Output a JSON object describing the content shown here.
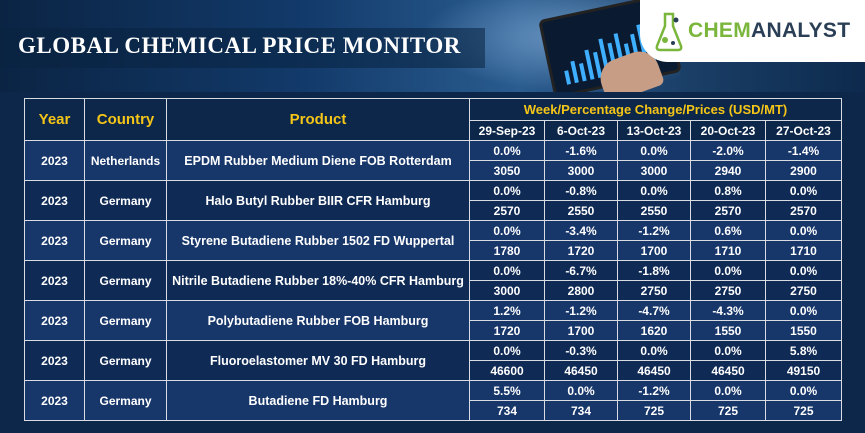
{
  "banner": {
    "title": "GLOBAL CHEMICAL PRICE MONITOR",
    "logo": {
      "part1": "CHEM",
      "part2": "ANALYST",
      "icon": "flask-icon"
    }
  },
  "table": {
    "headers": {
      "year": "Year",
      "country": "Country",
      "product": "Product",
      "group": "Week/Percentage Change/Prices (USD/MT)"
    },
    "dates": [
      "29-Sep-23",
      "6-Oct-23",
      "13-Oct-23",
      "20-Oct-23",
      "27-Oct-23"
    ],
    "rows": [
      {
        "year": "2023",
        "country": "Netherlands",
        "product": "EPDM Rubber Medium Diene FOB Rotterdam",
        "changes": [
          "0.0%",
          "-1.6%",
          "0.0%",
          "-2.0%",
          "-1.4%"
        ],
        "prices": [
          "3050",
          "3000",
          "3000",
          "2940",
          "2900"
        ]
      },
      {
        "year": "2023",
        "country": "Germany",
        "product": "Halo Butyl Rubber BIIR CFR Hamburg",
        "changes": [
          "0.0%",
          "-0.8%",
          "0.0%",
          "0.8%",
          "0.0%"
        ],
        "prices": [
          "2570",
          "2550",
          "2550",
          "2570",
          "2570"
        ]
      },
      {
        "year": "2023",
        "country": "Germany",
        "product": "Styrene Butadiene Rubber 1502 FD Wuppertal",
        "changes": [
          "0.0%",
          "-3.4%",
          "-1.2%",
          "0.6%",
          "0.0%"
        ],
        "prices": [
          "1780",
          "1720",
          "1700",
          "1710",
          "1710"
        ]
      },
      {
        "year": "2023",
        "country": "Germany",
        "product": "Nitrile Butadiene Rubber 18%-40% CFR Hamburg",
        "changes": [
          "0.0%",
          "-6.7%",
          "-1.8%",
          "0.0%",
          "0.0%"
        ],
        "prices": [
          "3000",
          "2800",
          "2750",
          "2750",
          "2750"
        ]
      },
      {
        "year": "2023",
        "country": "Germany",
        "product": "Polybutadiene Rubber FOB Hamburg",
        "changes": [
          "1.2%",
          "-1.2%",
          "-4.7%",
          "-4.3%",
          "0.0%"
        ],
        "prices": [
          "1720",
          "1700",
          "1620",
          "1550",
          "1550"
        ]
      },
      {
        "year": "2023",
        "country": "Germany",
        "product": "Fluoroelastomer MV 30 FD Hamburg",
        "changes": [
          "0.0%",
          "-0.3%",
          "0.0%",
          "0.0%",
          "5.8%"
        ],
        "prices": [
          "46600",
          "46450",
          "46450",
          "46450",
          "49150"
        ]
      },
      {
        "year": "2023",
        "country": "Germany",
        "product": "Butadiene FD Hamburg",
        "changes": [
          "5.5%",
          "0.0%",
          "-1.2%",
          "0.0%",
          "0.0%"
        ],
        "prices": [
          "734",
          "734",
          "725",
          "725",
          "725"
        ]
      }
    ]
  },
  "colors": {
    "header_text": "#f5c518",
    "row_light": "#17366a",
    "row_dark": "#0f2a55",
    "brand_green": "#7ab53c"
  }
}
